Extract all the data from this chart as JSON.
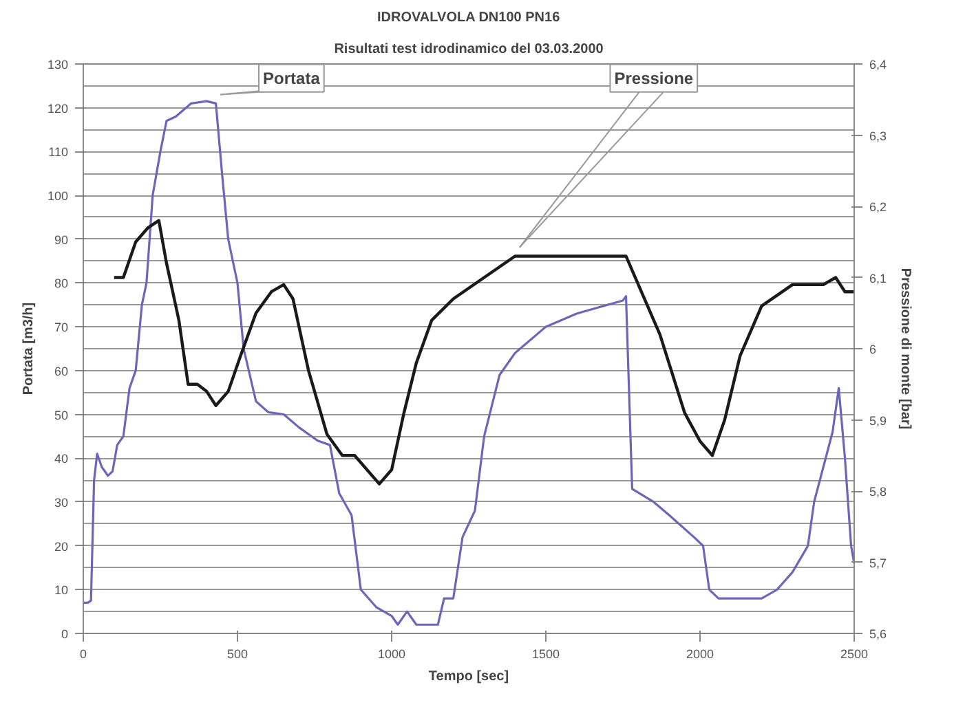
{
  "chart_data": {
    "type": "line",
    "title": "IDROVALVOLA DN100 PN16",
    "subtitle": "Risultati test idrodinamico del 03.03.2000",
    "xlabel": "Tempo [sec]",
    "ylabel": "Portata [m3/h]",
    "y2label": "Pressione di monte [bar]",
    "xlim": [
      0,
      2500
    ],
    "xticks": [
      0,
      500,
      1000,
      1500,
      2000,
      2500
    ],
    "ylim": [
      0,
      130
    ],
    "yticks": [
      0,
      10,
      20,
      30,
      40,
      50,
      60,
      70,
      80,
      90,
      100,
      110,
      120,
      130
    ],
    "y2lim": [
      5.6,
      6.4
    ],
    "y2ticks": [
      {
        "value": 5.6,
        "label": "5,6"
      },
      {
        "value": 5.7,
        "label": "5,7"
      },
      {
        "value": 5.8,
        "label": "5,8"
      },
      {
        "value": 5.9,
        "label": "5,9"
      },
      {
        "value": 6,
        "label": "6"
      },
      {
        "value": 6.1,
        "label": "6,1"
      },
      {
        "value": 6.2,
        "label": "6,2"
      },
      {
        "value": 6.3,
        "label": "6,3"
      },
      {
        "value": 6.4,
        "label": "6,4"
      }
    ],
    "grid": "y",
    "series": [
      {
        "name": "Portata",
        "color": "#6b66b8",
        "x": [
          0,
          15,
          25,
          35,
          45,
          60,
          80,
          95,
          110,
          130,
          150,
          170,
          190,
          205,
          225,
          250,
          270,
          300,
          350,
          400,
          430,
          450,
          470,
          500,
          520,
          560,
          600,
          650,
          700,
          760,
          800,
          830,
          870,
          900,
          950,
          1000,
          1020,
          1050,
          1080,
          1120,
          1150,
          1170,
          1200,
          1230,
          1270,
          1300,
          1350,
          1400,
          1500,
          1600,
          1700,
          1750,
          1760,
          1780,
          1850,
          1900,
          1980,
          2010,
          2030,
          2060,
          2100,
          2150,
          2200,
          2250,
          2300,
          2350,
          2370,
          2400,
          2430,
          2450,
          2470,
          2490,
          2500
        ],
        "values": [
          7,
          7,
          7.5,
          35,
          41,
          38,
          36,
          37,
          43,
          45,
          56,
          60,
          75,
          80,
          100,
          110,
          117,
          118,
          121,
          121.5,
          121,
          105,
          90,
          80,
          65,
          53,
          50.5,
          50,
          47,
          44,
          43,
          32,
          27,
          10,
          6,
          4,
          2,
          5,
          2,
          2,
          2,
          8,
          8,
          22,
          28,
          45,
          59,
          64,
          70,
          73,
          75,
          76,
          77,
          33,
          30,
          27,
          22,
          20,
          10,
          8,
          8,
          8,
          8,
          10,
          14,
          20,
          30,
          38,
          46,
          56,
          40,
          20,
          16
        ]
      },
      {
        "name": "Pressione",
        "color": "#1a1a1a",
        "axis": "y2",
        "x": [
          100,
          130,
          170,
          210,
          245,
          270,
          310,
          340,
          370,
          400,
          430,
          470,
          510,
          560,
          610,
          650,
          680,
          730,
          790,
          840,
          880,
          920,
          960,
          1000,
          1040,
          1080,
          1130,
          1200,
          1300,
          1400,
          1500,
          1600,
          1700,
          1760,
          1800,
          1870,
          1950,
          2000,
          2040,
          2080,
          2130,
          2200,
          2300,
          2400,
          2440,
          2470,
          2500
        ],
        "values": [
          6.1,
          6.1,
          6.15,
          6.17,
          6.18,
          6.12,
          6.04,
          5.95,
          5.95,
          5.94,
          5.92,
          5.94,
          5.99,
          6.05,
          6.08,
          6.09,
          6.07,
          5.97,
          5.88,
          5.85,
          5.85,
          5.83,
          5.81,
          5.83,
          5.91,
          5.98,
          6.04,
          6.07,
          6.1,
          6.13,
          6.13,
          6.13,
          6.13,
          6.13,
          6.09,
          6.02,
          5.91,
          5.87,
          5.85,
          5.9,
          5.99,
          6.06,
          6.09,
          6.09,
          6.1,
          6.08,
          6.08
        ]
      }
    ]
  }
}
